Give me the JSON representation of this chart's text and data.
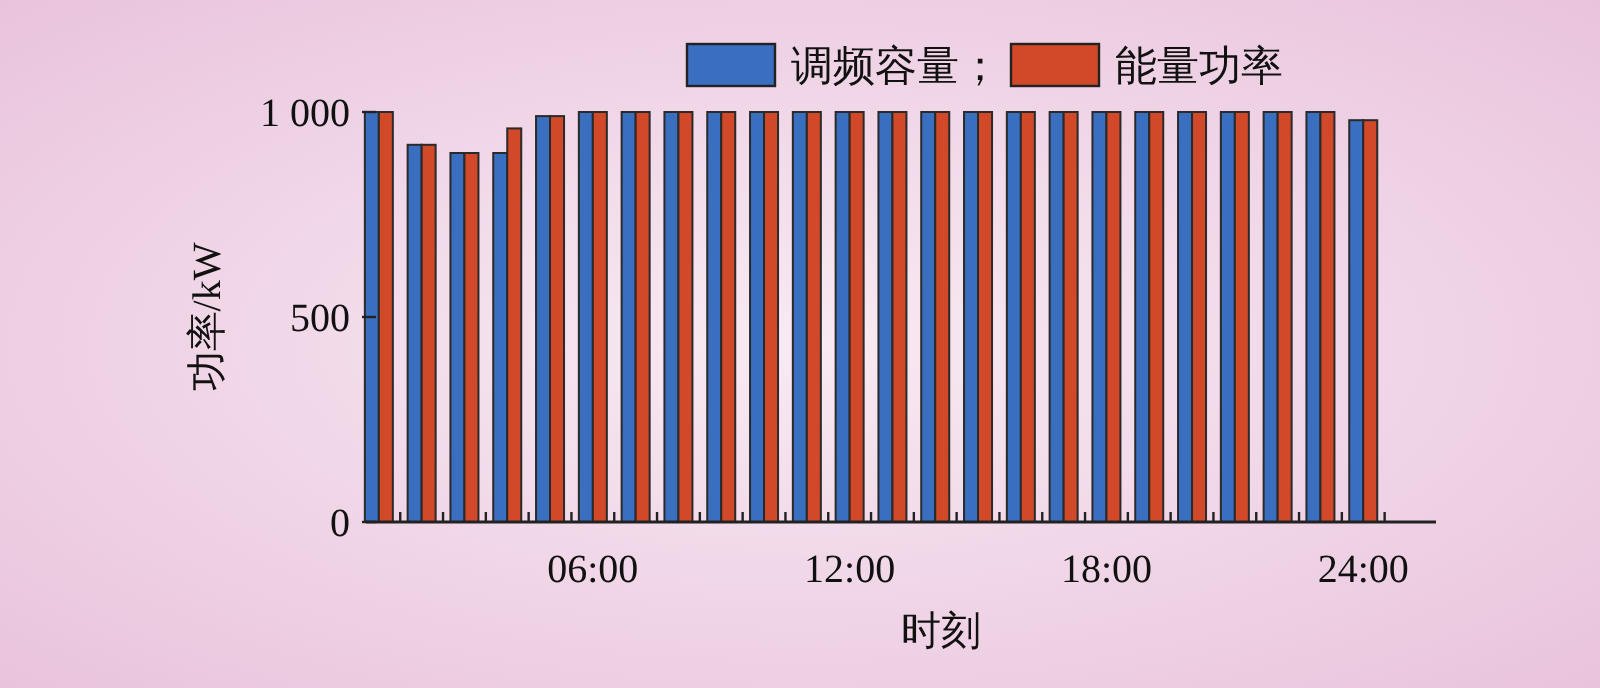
{
  "chart_data": {
    "type": "bar",
    "xlabel": "时刻",
    "ylabel": "功率/kW",
    "categories": [
      null,
      null,
      null,
      null,
      null,
      "06:00",
      null,
      null,
      null,
      null,
      null,
      "12:00",
      null,
      null,
      null,
      null,
      null,
      "18:00",
      null,
      null,
      null,
      null,
      null,
      "24:00"
    ],
    "series": [
      {
        "name": "调频容量；",
        "color": "#3a6fc0",
        "values": [
          1000,
          920,
          900,
          900,
          990,
          1000,
          1000,
          1000,
          1000,
          1000,
          1000,
          1000,
          1000,
          1000,
          1000,
          1000,
          1000,
          1000,
          1000,
          1000,
          1000,
          1000,
          1000,
          980
        ]
      },
      {
        "name": "能量功率",
        "color": "#d2492a",
        "values": [
          1000,
          920,
          900,
          960,
          990,
          1000,
          1000,
          1000,
          1000,
          1000,
          1000,
          1000,
          1000,
          1000,
          1000,
          1000,
          1000,
          1000,
          1000,
          1000,
          1000,
          1000,
          1000,
          980
        ]
      }
    ],
    "ylim": [
      0,
      1000
    ],
    "yticks": [
      0,
      500,
      {
        "value": 1000,
        "label": "1 000"
      }
    ],
    "legend": "top",
    "grid": false
  }
}
